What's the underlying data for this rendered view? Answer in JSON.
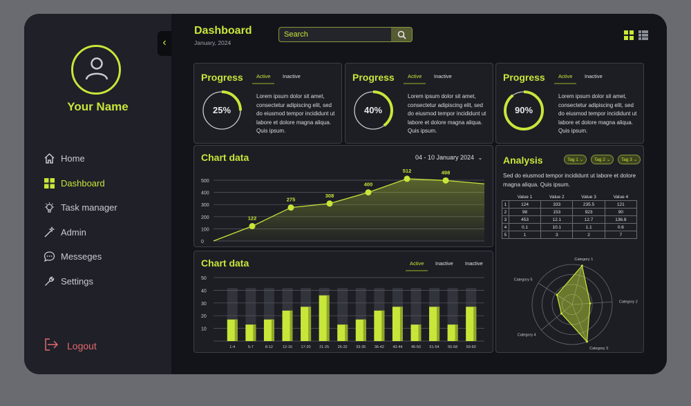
{
  "user": {
    "name": "Your Name"
  },
  "nav": [
    {
      "label": "Home",
      "icon": "home-icon",
      "active": false
    },
    {
      "label": "Dashboard",
      "icon": "dashboard-grid-icon",
      "active": true
    },
    {
      "label": "Task manager",
      "icon": "lightbulb-icon",
      "active": false
    },
    {
      "label": "Admin",
      "icon": "magic-wand-icon",
      "active": false
    },
    {
      "label": "Messeges",
      "icon": "chat-bubble-icon",
      "active": false
    },
    {
      "label": "Settings",
      "icon": "wrench-icon",
      "active": false
    }
  ],
  "logout": {
    "label": "Logout",
    "icon": "logout-icon"
  },
  "header": {
    "title": "Dashboard",
    "date": "January, 2024",
    "search_value": "Search",
    "search_icon": "search-icon"
  },
  "view_toggle": {
    "grid_icon": "grid-view-icon",
    "list_icon": "list-view-icon"
  },
  "progress_cards": [
    {
      "title": "Progress",
      "tab_active": "Active",
      "tab_inactive": "Inactive",
      "value": 25,
      "label": "25%",
      "text": "Lorem ipsum dolor sit amet, consectetur adipiscing elit, sed do eiusmod tempor incididunt ut labore et dolore magna aliqua. Quis ipsum."
    },
    {
      "title": "Progress",
      "tab_active": "Active",
      "tab_inactive": "Inactive",
      "value": 40,
      "label": "40%",
      "text": "Lorem ipsum dolor sit amet, consectetur adipiscing elit, sed do eiusmod tempor incididunt ut labore et dolore magna aliqua. Quis ipsum."
    },
    {
      "title": "Progress",
      "tab_active": "Active",
      "tab_inactive": "Inactive",
      "value": 90,
      "label": "90%",
      "text": "Lorem ipsum dolor sit amet, consectetur adipiscing elit, sed do eiusmod tempor incididunt ut labore et dolore magna aliqua. Quis ipsum."
    }
  ],
  "line_card": {
    "title": "Chart data",
    "range": "04 - 10 January 2024"
  },
  "bar_card": {
    "title": "Chart data",
    "tab_active": "Active",
    "tab_inactive1": "Inactive",
    "tab_inactive2": "Inactive"
  },
  "analysis": {
    "title": "Analysis",
    "tags": [
      "Tag 1",
      "Tag 2",
      "Tag 3"
    ],
    "text": "Sed do eiusmod tempor incididunt ut labore et dolore magna aliqua. Quis ipsum.",
    "table": {
      "headers": [
        "",
        "Value 1",
        "Value 2",
        "Value 3",
        "Value 4"
      ],
      "rows": [
        [
          "1",
          "124",
          "333",
          "235.5",
          "121"
        ],
        [
          "2",
          "98",
          "153",
          "923",
          "90"
        ],
        [
          "3",
          "453",
          "12.1",
          "12.7",
          "136.8"
        ],
        [
          "4",
          "0.1",
          "10.1",
          "1.1",
          "0.6"
        ],
        [
          "5",
          "1",
          "3",
          "2",
          "7"
        ]
      ]
    }
  },
  "colors": {
    "accent": "#c7e63a",
    "logout": "#e36a6e"
  },
  "chart_data": [
    {
      "type": "line",
      "title": "Chart data",
      "ylim": [
        0,
        500
      ],
      "yticks": [
        0,
        100,
        200,
        300,
        400,
        500
      ],
      "points": [
        {
          "x": 0,
          "y": 0,
          "label": null
        },
        {
          "x": 1,
          "y": 122,
          "label": "122"
        },
        {
          "x": 2,
          "y": 275,
          "label": "275"
        },
        {
          "x": 3,
          "y": 308,
          "label": "308"
        },
        {
          "x": 4,
          "y": 400,
          "label": "400"
        },
        {
          "x": 5,
          "y": 512,
          "label": "512"
        },
        {
          "x": 6,
          "y": 498,
          "label": "498"
        },
        {
          "x": 7,
          "y": 470,
          "label": null
        }
      ],
      "grid": true
    },
    {
      "type": "bar",
      "title": "Chart data",
      "ylim": [
        0,
        50
      ],
      "yticks": [
        10,
        20,
        30,
        40,
        50
      ],
      "categories": [
        "1-4",
        "5-7",
        "8-12",
        "12-16",
        "17-20",
        "21-25",
        "26-32",
        "33-35",
        "36-42",
        "43-44",
        "45-50",
        "51-54",
        "55-58",
        "59-60"
      ],
      "values": [
        17,
        13,
        17,
        24,
        27,
        36,
        13,
        17,
        24,
        27,
        13,
        27,
        13,
        27
      ],
      "grid": true
    },
    {
      "type": "radar",
      "categories": [
        "Category 1",
        "Category 2",
        "Category 3",
        "Category 4",
        "Category 5"
      ],
      "values": [
        100,
        45,
        100,
        35,
        45
      ],
      "rmax": 100
    }
  ]
}
